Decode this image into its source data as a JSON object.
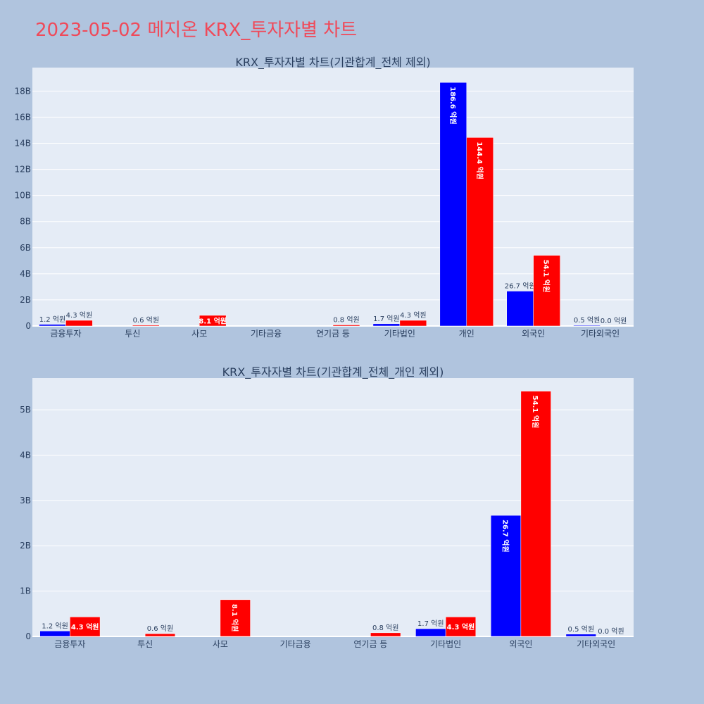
{
  "title": "2023-05-02 메지온 KRX_투자자별 차트",
  "colors": {
    "buy": "#0000ff",
    "sell": "#ff0000",
    "plot_bg": "#e5ecf6",
    "page_bg": "#b0c4de",
    "title": "#ef4a5a"
  },
  "chart_data": [
    {
      "type": "bar",
      "title": "KRX_투자자별 차트(기관합계_전체 제외)",
      "categories": [
        "금융투자",
        "투신",
        "사모",
        "기타금융",
        "연기금 등",
        "기타법인",
        "개인",
        "외국인",
        "기타외국인"
      ],
      "series": [
        {
          "color": "#0000ff",
          "values": [
            0.12,
            0,
            0,
            0,
            0,
            0.17,
            18.66,
            2.67,
            0.05
          ],
          "labels": [
            "1.2 억원",
            "",
            "",
            "",
            "",
            "1.7 억원",
            "186.6 억원",
            "26.7 억원",
            "0.5 억원"
          ]
        },
        {
          "color": "#ff0000",
          "values": [
            0.43,
            0.06,
            0.81,
            0,
            0.08,
            0.43,
            14.44,
            5.41,
            0.0
          ],
          "labels": [
            "4.3 억원",
            "0.6 억원",
            "8.1 억원",
            "",
            "0.8 억원",
            "4.3 억원",
            "144.4 억원",
            "54.1 억원",
            "0.0 억원"
          ]
        }
      ],
      "ylim": [
        0,
        19.8
      ],
      "yticks": [
        0,
        2,
        4,
        6,
        8,
        10,
        12,
        14,
        16,
        18
      ],
      "ytick_labels": [
        "0",
        "2B",
        "4B",
        "6B",
        "8B",
        "10B",
        "12B",
        "14B",
        "16B",
        "18B"
      ],
      "grid": true,
      "legend": "none"
    },
    {
      "type": "bar",
      "title": "KRX_투자자별 차트(기관합계_전체_개인 제외)",
      "categories": [
        "금융투자",
        "투신",
        "사모",
        "기타금융",
        "연기금 등",
        "기타법인",
        "외국인",
        "기타외국인"
      ],
      "series": [
        {
          "color": "#0000ff",
          "values": [
            0.12,
            0,
            0,
            0,
            0,
            0.17,
            2.67,
            0.05
          ],
          "labels": [
            "1.2 억원",
            "",
            "",
            "",
            "",
            "1.7 억원",
            "26.7 억원",
            "0.5 억원"
          ]
        },
        {
          "color": "#ff0000",
          "values": [
            0.43,
            0.06,
            0.81,
            0,
            0.08,
            0.43,
            5.41,
            0.0
          ],
          "labels": [
            "4.3 억원",
            "0.6 억원",
            "8.1 억원",
            "",
            "0.8 억원",
            "4.3 억원",
            "54.1 억원",
            "0.0 억원"
          ]
        }
      ],
      "ylim": [
        0,
        5.7
      ],
      "yticks": [
        0,
        1,
        2,
        3,
        4,
        5
      ],
      "ytick_labels": [
        "0",
        "1B",
        "2B",
        "3B",
        "4B",
        "5B"
      ],
      "grid": true,
      "legend": "none"
    }
  ]
}
